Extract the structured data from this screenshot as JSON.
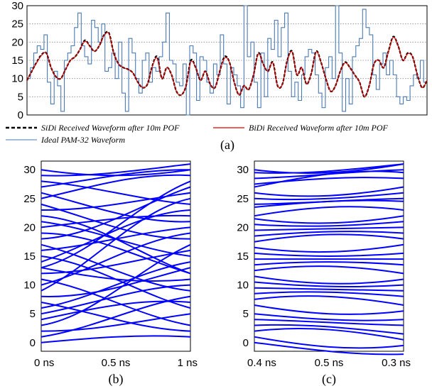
{
  "chart_data": [
    {
      "panel": "(a)",
      "type": "line",
      "ylim": [
        0,
        30
      ],
      "yticks": [
        0,
        5,
        10,
        15,
        20,
        25,
        30
      ],
      "xticks": [],
      "grid": "horizontal dotted",
      "legend_position": "below",
      "series": [
        {
          "name": "SiDi Received Waveform after 10m POF",
          "color": "#000000",
          "style": "dashed",
          "y": [
            9.5,
            12,
            14.5,
            16.5,
            17,
            13,
            10.5,
            10,
            12.5,
            15,
            16,
            18,
            20.5,
            19,
            17.5,
            19,
            22,
            22.5,
            17,
            14,
            13,
            12.5,
            11.5,
            9,
            7.5,
            8.5,
            13.5,
            16,
            10,
            13,
            11,
            6.5,
            5.5,
            8,
            15,
            13,
            9.5,
            12,
            8.5,
            7.5,
            12,
            16,
            14.5,
            9,
            5.5,
            8,
            7,
            11,
            17,
            14,
            12,
            14.5,
            8,
            8.5,
            15,
            17.5,
            11,
            13,
            8.5,
            11.5,
            17.5,
            14.5,
            10,
            6.5,
            8,
            12,
            14.5,
            13,
            11,
            9,
            5,
            8,
            14,
            15,
            13,
            17.5,
            21.5,
            19,
            15,
            17,
            16,
            11,
            7.5,
            9.5
          ]
        },
        {
          "name": "BiDi Received Waveform after 10m POF",
          "color": "#e00000",
          "style": "solid",
          "y": [
            9.5,
            12,
            14.3,
            16.3,
            17,
            13,
            10.5,
            10,
            12.5,
            15,
            16,
            18,
            20.2,
            19,
            17.5,
            19,
            21.8,
            22.3,
            17,
            14,
            13,
            12.5,
            11.5,
            9,
            7.5,
            8.5,
            13.3,
            15.6,
            10,
            13,
            11,
            6.5,
            5.5,
            8,
            14.6,
            13,
            9.5,
            12,
            8.5,
            7.5,
            12,
            15.6,
            14.5,
            9,
            5.5,
            8,
            7,
            11,
            16.8,
            14,
            12,
            14.3,
            8,
            8.5,
            14.8,
            17.3,
            11,
            13,
            8.5,
            11.5,
            17.3,
            14.5,
            10,
            6.5,
            8,
            12,
            14.3,
            13,
            11,
            9,
            5,
            8,
            14,
            15,
            13,
            17.3,
            21.3,
            19,
            15,
            16.8,
            16,
            11,
            7.5,
            9.5
          ]
        },
        {
          "name": "Ideal PAM-32 Waveform",
          "color": "#4a7ab5",
          "style": "step",
          "y": [
            10,
            13,
            17,
            19,
            18,
            22,
            9,
            3,
            12,
            8,
            1,
            15,
            17,
            19,
            24,
            28,
            19,
            16,
            14,
            26,
            24,
            20,
            25,
            12,
            13,
            17,
            10,
            20,
            6,
            1,
            21,
            17,
            10,
            6,
            15,
            17,
            9,
            13,
            12,
            16,
            20,
            28,
            15,
            14,
            9,
            8,
            14,
            0,
            19,
            17,
            4,
            16,
            15,
            9,
            6,
            14,
            11,
            22,
            14,
            3,
            13,
            11,
            8,
            2,
            30,
            16,
            20,
            9,
            2,
            17,
            5,
            21,
            18,
            26,
            16,
            24,
            28,
            12,
            5,
            9,
            4,
            11,
            16,
            18,
            17,
            11,
            6,
            2,
            13,
            16,
            10,
            30,
            17,
            1,
            10,
            3,
            16,
            19,
            21,
            29,
            24,
            22,
            11,
            7,
            14,
            17,
            11,
            15,
            11,
            5,
            3,
            5,
            4,
            8,
            11,
            10,
            15,
            9
          ]
        }
      ]
    },
    {
      "panel": "(b)",
      "type": "line",
      "plot": "eye diagram",
      "x_ticks": [
        "0 ns",
        "0.5 ns",
        "1 ns"
      ],
      "ylim": [
        -1.5,
        31.5
      ],
      "yticks": [
        0,
        5,
        10,
        15,
        20,
        25,
        30
      ],
      "line_color": "#0000ff",
      "series": [
        {
          "start": 30,
          "end": 30
        },
        {
          "start": 29,
          "end": 31
        },
        {
          "start": 28,
          "end": 24
        },
        {
          "start": 27,
          "end": 30
        },
        {
          "start": 25,
          "end": 29
        },
        {
          "start": 24,
          "end": 18
        },
        {
          "start": 23,
          "end": 26
        },
        {
          "start": 21,
          "end": 15
        },
        {
          "start": 20,
          "end": 22
        },
        {
          "start": 19,
          "end": 12
        },
        {
          "start": 18,
          "end": 27
        },
        {
          "start": 17,
          "end": 9
        },
        {
          "start": 16,
          "end": 20
        },
        {
          "start": 15,
          "end": 6
        },
        {
          "start": 14,
          "end": 23
        },
        {
          "start": 13,
          "end": 11
        },
        {
          "start": 12,
          "end": 16
        },
        {
          "start": 11,
          "end": 3
        },
        {
          "start": 10,
          "end": 19
        },
        {
          "start": 9,
          "end": 25
        },
        {
          "start": 8,
          "end": 13
        },
        {
          "start": 7,
          "end": 2
        },
        {
          "start": 6,
          "end": 14
        },
        {
          "start": 5,
          "end": 10
        },
        {
          "start": 4,
          "end": 7
        },
        {
          "start": 3,
          "end": 17
        },
        {
          "start": 2,
          "end": 5
        },
        {
          "start": 1,
          "end": 8
        },
        {
          "start": 0,
          "end": 1
        },
        {
          "start": 22,
          "end": 12
        },
        {
          "start": 26,
          "end": 21
        },
        {
          "start": 13,
          "end": 28
        }
      ]
    },
    {
      "panel": "(c)",
      "type": "line",
      "plot": "eye diagram",
      "x_ticks": [
        "0.4 ns",
        "0.5 ns",
        "0.3 ns"
      ],
      "ylim": [
        -1.5,
        31.5
      ],
      "yticks": [
        0,
        5,
        10,
        15,
        20,
        25,
        30
      ],
      "line_color": "#0000ff",
      "series": [
        {
          "start": 30,
          "end": 31
        },
        {
          "start": 29.5,
          "end": 31
        },
        {
          "start": 28.5,
          "end": 30
        },
        {
          "start": 27.5,
          "end": 28.5
        },
        {
          "start": 27,
          "end": 29.5
        },
        {
          "start": 26,
          "end": 27
        },
        {
          "start": 25,
          "end": 26
        },
        {
          "start": 24,
          "end": 25
        },
        {
          "start": 23.5,
          "end": 24.5
        },
        {
          "start": 22,
          "end": 23
        },
        {
          "start": 21.5,
          "end": 22
        },
        {
          "start": 20.5,
          "end": 21
        },
        {
          "start": 19.5,
          "end": 20
        },
        {
          "start": 18.5,
          "end": 19
        },
        {
          "start": 17.5,
          "end": 18
        },
        {
          "start": 16.5,
          "end": 17
        },
        {
          "start": 15.5,
          "end": 15.5
        },
        {
          "start": 14.5,
          "end": 14.5
        },
        {
          "start": 13.5,
          "end": 13.5
        },
        {
          "start": 12.5,
          "end": 12
        },
        {
          "start": 11.5,
          "end": 11
        },
        {
          "start": 10.5,
          "end": 10
        },
        {
          "start": 9.5,
          "end": 9
        },
        {
          "start": 8.5,
          "end": 8
        },
        {
          "start": 7.5,
          "end": 6.5
        },
        {
          "start": 6.5,
          "end": 5.5
        },
        {
          "start": 5,
          "end": 4
        },
        {
          "start": 4,
          "end": 3
        },
        {
          "start": 3,
          "end": 1.5
        },
        {
          "start": 2,
          "end": 0.5
        },
        {
          "start": 1,
          "end": -0.5
        },
        {
          "start": 0,
          "end": -2
        }
      ]
    }
  ],
  "captions": {
    "a": "(a)",
    "b": "(b)",
    "c": "(c)"
  }
}
